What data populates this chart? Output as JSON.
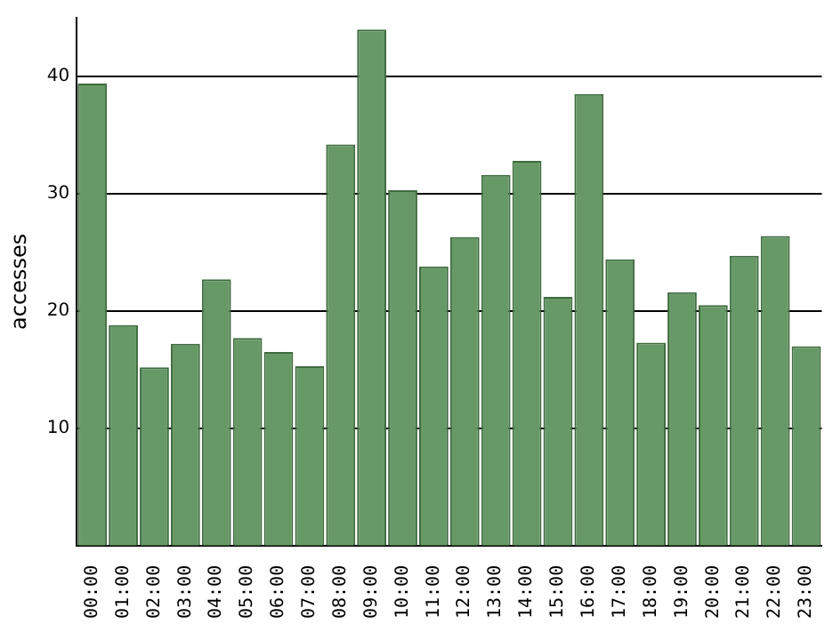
{
  "chart_data": {
    "type": "bar",
    "ylabel": "accesses",
    "categories": [
      "00:00",
      "01:00",
      "02:00",
      "03:00",
      "04:00",
      "05:00",
      "06:00",
      "07:00",
      "08:00",
      "09:00",
      "10:00",
      "11:00",
      "12:00",
      "13:00",
      "14:00",
      "15:00",
      "16:00",
      "17:00",
      "18:00",
      "19:00",
      "20:00",
      "21:00",
      "22:00",
      "23:00"
    ],
    "values": [
      39.4,
      18.8,
      15.2,
      17.2,
      22.7,
      17.7,
      16.5,
      15.3,
      34.2,
      44,
      30.3,
      23.8,
      26.3,
      31.6,
      32.8,
      21.2,
      38.5,
      24.4,
      17.3,
      21.6,
      20.5,
      24.7,
      26.4,
      17
    ],
    "color": "#669966",
    "ylim": [
      0,
      45
    ],
    "yticks": [
      10,
      20,
      30,
      40
    ],
    "grid": "y"
  }
}
